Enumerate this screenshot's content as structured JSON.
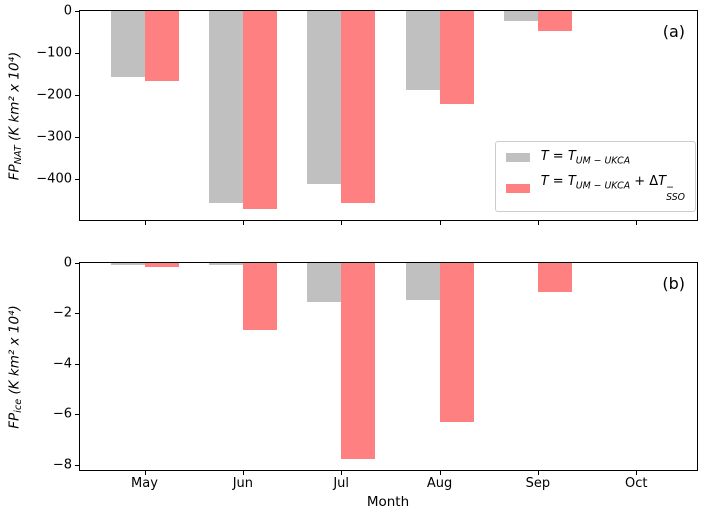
{
  "figure": {
    "xlabel": "Month",
    "months": [
      "May",
      "Jun",
      "Jul",
      "Aug",
      "Sep",
      "Oct"
    ],
    "colors": {
      "gray": "#c0c0c0",
      "red": "#ff8080",
      "spine": "#000000",
      "legend_border": "#cccccc",
      "background": "#ffffff"
    }
  },
  "legend": {
    "items": [
      {
        "color_key": "gray",
        "plain_text": "T = T_UM−UKCA",
        "tokens": [
          {
            "type": "italic",
            "text": "T"
          },
          {
            "type": "normal",
            "text": " = "
          },
          {
            "type": "italic",
            "text": "T"
          },
          {
            "type": "sub",
            "text": "UM − UKCA"
          }
        ]
      },
      {
        "color_key": "red",
        "plain_text": "T = T_UM−UKCA + ΔT⁻_SSO",
        "tokens": [
          {
            "type": "italic",
            "text": "T"
          },
          {
            "type": "normal",
            "text": " = "
          },
          {
            "type": "italic",
            "text": "T"
          },
          {
            "type": "sub",
            "text": "UM − UKCA"
          },
          {
            "type": "normal",
            "text": " + Δ"
          },
          {
            "type": "italic",
            "text": "T"
          },
          {
            "type": "stack",
            "sup": "−",
            "sub": "SSO"
          }
        ]
      }
    ]
  },
  "chart_data": [
    {
      "type": "bar",
      "panel_label": "(a)",
      "ylabel": {
        "name": "FP",
        "sub": "NAT",
        "units": " (K km² x 10⁴)"
      },
      "categories": [
        "May",
        "Jun",
        "Jul",
        "Aug",
        "Sep",
        "Oct"
      ],
      "series": [
        {
          "name": "T = T_UM−UKCA",
          "color_key": "gray",
          "values": [
            -157,
            -457,
            -412,
            -187,
            -24,
            0
          ]
        },
        {
          "name": "T = T_UM−UKCA + ΔT⁻_SSO",
          "color_key": "red",
          "values": [
            -167,
            -471,
            -457,
            -220,
            -47,
            0
          ]
        }
      ],
      "yticks": [
        0,
        -100,
        -200,
        -300,
        -400
      ],
      "ylim": [
        -497,
        0
      ],
      "grid": false,
      "legend_position": "lower right"
    },
    {
      "type": "bar",
      "panel_label": "(b)",
      "ylabel": {
        "name": "FP",
        "sub": "ice",
        "units": " (K km² x 10⁴)"
      },
      "categories": [
        "May",
        "Jun",
        "Jul",
        "Aug",
        "Sep",
        "Oct"
      ],
      "series": [
        {
          "name": "T = T_UM−UKCA",
          "color_key": "gray",
          "values": [
            -0.06,
            -0.09,
            -1.55,
            -1.46,
            0,
            0
          ]
        },
        {
          "name": "T = T_UM−UKCA + ΔT⁻_SSO",
          "color_key": "red",
          "values": [
            -0.16,
            -2.66,
            -7.77,
            -6.3,
            -1.16,
            0
          ]
        }
      ],
      "yticks": [
        0,
        -2,
        -4,
        -6,
        -8
      ],
      "ylim": [
        -8.2,
        0
      ],
      "grid": false
    }
  ]
}
